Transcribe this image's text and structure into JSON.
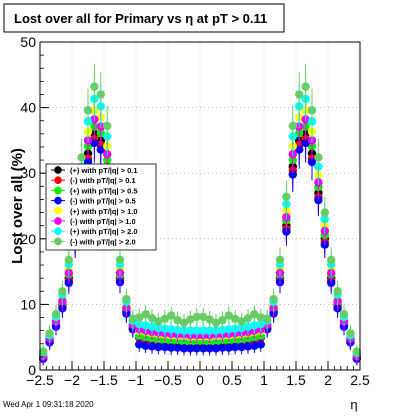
{
  "title": "Lost over all for Primary vs   η at pT > 0.11",
  "footer": "Wed Apr  1 09:31:18 2020",
  "chart_data": {
    "type": "scatter",
    "title": "Lost over all for Primary vs   η at pT > 0.11",
    "xlabel": "η",
    "ylabel": "Lost over all (%)",
    "xlim": [
      -2.5,
      2.5
    ],
    "ylim": [
      0,
      50
    ],
    "xticks": [
      -2.5,
      -2,
      -1.5,
      -1,
      -0.5,
      0,
      0.5,
      1,
      1.5,
      2,
      2.5
    ],
    "xtick_labels": [
      "−2.5",
      "−2",
      "−1.5",
      "−1",
      "−0.5",
      "0",
      "0.5",
      "1",
      "1.5",
      "2",
      "2.5"
    ],
    "yticks": [
      0,
      10,
      20,
      30,
      40,
      50
    ],
    "ytick_labels": [
      "0",
      "10",
      "20",
      "30",
      "40",
      "50"
    ],
    "grid": true,
    "legend_position": "middle-left",
    "x": [
      -2.45,
      -2.35,
      -2.25,
      -2.15,
      -2.05,
      -1.95,
      -1.85,
      -1.75,
      -1.65,
      -1.55,
      -1.45,
      -1.35,
      -1.25,
      -1.15,
      -1.05,
      -0.95,
      -0.85,
      -0.75,
      -0.65,
      -0.55,
      -0.45,
      -0.35,
      -0.25,
      -0.15,
      -0.05,
      0.05,
      0.15,
      0.25,
      0.35,
      0.45,
      0.55,
      0.65,
      0.75,
      0.85,
      0.95,
      1.05,
      1.15,
      1.25,
      1.35,
      1.45,
      1.55,
      1.65,
      1.75,
      1.85,
      1.95,
      2.05,
      2.15,
      2.25,
      2.35,
      2.45
    ],
    "series": [
      {
        "name": "(+) with pT/|q| > 0.1",
        "color": "#000000",
        "values": [
          2.0,
          4.5,
          7.0,
          10.0,
          14.0,
          20.0,
          27.0,
          33.0,
          36.0,
          35.0,
          31.0,
          22.0,
          14.0,
          9.0,
          6.5,
          5.0,
          4.8,
          4.6,
          4.5,
          4.4,
          4.3,
          4.2,
          4.2,
          4.1,
          4.1,
          4.1,
          4.1,
          4.2,
          4.2,
          4.3,
          4.4,
          4.5,
          4.6,
          4.8,
          5.0,
          6.5,
          9.0,
          14.0,
          22.0,
          31.0,
          35.0,
          36.0,
          33.0,
          27.0,
          20.0,
          14.0,
          10.0,
          7.0,
          4.5,
          2.0
        ]
      },
      {
        "name": "(-) with pT/|q| > 0.1",
        "color": "#ff0000",
        "values": [
          1.8,
          4.3,
          6.8,
          9.6,
          13.6,
          19.5,
          26.3,
          32.2,
          35.2,
          34.3,
          30.4,
          21.5,
          13.7,
          8.8,
          6.3,
          4.9,
          4.7,
          4.5,
          4.4,
          4.3,
          4.2,
          4.1,
          4.1,
          4.0,
          4.0,
          4.0,
          4.0,
          4.1,
          4.1,
          4.2,
          4.3,
          4.4,
          4.5,
          4.7,
          4.9,
          6.3,
          8.8,
          13.7,
          21.5,
          30.4,
          34.3,
          35.2,
          32.2,
          26.3,
          19.5,
          13.6,
          9.6,
          6.8,
          4.3,
          1.8
        ]
      },
      {
        "name": "(+) with pT/|q| > 0.5",
        "color": "#00ee00",
        "values": [
          2.0,
          4.7,
          7.2,
          10.3,
          14.6,
          20.6,
          27.9,
          34.1,
          37.1,
          36.1,
          32.0,
          22.8,
          14.5,
          9.3,
          6.7,
          5.2,
          5.0,
          4.8,
          4.6,
          4.5,
          4.5,
          4.4,
          4.3,
          4.2,
          4.2,
          4.2,
          4.2,
          4.3,
          4.4,
          4.5,
          4.5,
          4.6,
          4.8,
          5.0,
          5.2,
          6.7,
          9.3,
          14.5,
          22.8,
          32.0,
          36.1,
          37.1,
          34.1,
          27.9,
          20.6,
          14.6,
          10.3,
          7.2,
          4.7,
          2.0
        ]
      },
      {
        "name": "(-) with pT/|q| > 0.5",
        "color": "#0000ff",
        "values": [
          1.7,
          4.2,
          6.6,
          9.4,
          13.3,
          19.1,
          25.9,
          31.7,
          34.6,
          33.6,
          29.8,
          21.1,
          13.4,
          8.6,
          6.2,
          3.9,
          3.7,
          3.6,
          3.5,
          3.5,
          3.4,
          3.4,
          3.3,
          3.3,
          3.3,
          3.3,
          3.3,
          3.3,
          3.4,
          3.4,
          3.5,
          3.5,
          3.6,
          3.7,
          3.9,
          6.2,
          8.6,
          13.4,
          21.1,
          29.8,
          33.6,
          34.6,
          31.7,
          25.9,
          19.1,
          13.3,
          9.4,
          6.6,
          4.2,
          1.7
        ]
      },
      {
        "name": "(+) with pT/|q| > 1.0",
        "color": "#ffff00",
        "values": [
          2.3,
          5.0,
          7.7,
          11.0,
          15.4,
          22.0,
          29.7,
          36.3,
          39.6,
          38.5,
          34.1,
          24.2,
          15.4,
          9.9,
          7.2,
          6.0,
          5.8,
          5.6,
          5.5,
          5.4,
          5.3,
          5.2,
          5.2,
          5.1,
          5.1,
          5.1,
          5.1,
          5.2,
          5.2,
          5.3,
          5.4,
          5.5,
          5.6,
          5.8,
          6.0,
          7.2,
          9.9,
          15.4,
          24.2,
          34.1,
          38.5,
          39.6,
          36.3,
          29.7,
          22.0,
          15.4,
          11.0,
          7.7,
          5.0,
          2.3
        ]
      },
      {
        "name": "(-) with pT/|q| > 1.0",
        "color": "#ee00ee",
        "values": [
          2.1,
          4.8,
          7.4,
          10.5,
          14.8,
          21.2,
          28.6,
          35.0,
          38.2,
          37.1,
          32.9,
          23.3,
          14.8,
          9.5,
          6.9,
          6.2,
          6.0,
          5.8,
          5.7,
          5.6,
          5.5,
          5.4,
          5.4,
          5.3,
          5.3,
          5.3,
          5.3,
          5.4,
          5.4,
          5.5,
          5.6,
          5.7,
          5.8,
          6.0,
          6.2,
          6.9,
          9.5,
          14.8,
          23.3,
          32.9,
          37.1,
          38.2,
          35.0,
          28.6,
          21.2,
          14.8,
          10.5,
          7.4,
          4.8,
          2.1
        ]
      },
      {
        "name": "(+) with pT/|q| > 2.0",
        "color": "#00ffff",
        "values": [
          2.6,
          5.3,
          8.1,
          11.5,
          16.1,
          23.0,
          31.0,
          37.9,
          41.3,
          40.2,
          35.6,
          25.3,
          16.1,
          10.4,
          7.5,
          7.0,
          6.8,
          6.6,
          6.4,
          6.3,
          6.2,
          6.1,
          6.0,
          6.0,
          6.0,
          6.0,
          6.0,
          6.0,
          6.1,
          6.2,
          6.3,
          6.4,
          6.6,
          6.8,
          7.0,
          7.5,
          10.4,
          16.1,
          25.3,
          35.6,
          40.2,
          41.3,
          37.9,
          31.0,
          23.0,
          16.1,
          11.5,
          8.1,
          5.3,
          2.6
        ]
      },
      {
        "name": "(-) with pT/|q| > 2.0",
        "color": "#66cc66",
        "values": [
          2.8,
          5.6,
          8.5,
          12.0,
          16.8,
          24.0,
          32.4,
          39.6,
          43.2,
          42.0,
          37.2,
          26.4,
          16.8,
          10.8,
          7.8,
          8.0,
          8.5,
          7.9,
          7.4,
          7.8,
          8.3,
          7.6,
          7.2,
          7.7,
          8.1,
          8.1,
          7.7,
          7.2,
          7.6,
          8.3,
          7.8,
          7.4,
          7.9,
          8.5,
          8.0,
          7.8,
          10.8,
          16.8,
          26.4,
          37.2,
          42.0,
          43.2,
          39.6,
          32.4,
          24.0,
          16.8,
          12.0,
          8.5,
          5.6,
          2.8
        ]
      }
    ]
  }
}
